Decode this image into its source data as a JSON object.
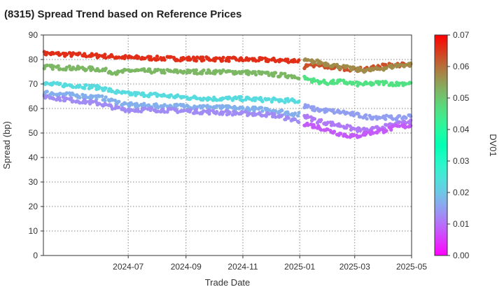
{
  "chart_data": {
    "type": "scatter",
    "title": "(8315)   Spread Trend based on Reference Prices",
    "xlabel": "Trade Date",
    "ylabel": "Spread (bp)",
    "xlim": [
      "2024-04-01",
      "2025-05-01"
    ],
    "ylim": [
      0,
      90
    ],
    "x_ticks": [
      "2024-07",
      "2024-09",
      "2024-11",
      "2025-01",
      "2025-03",
      "2025-05"
    ],
    "y_ticks": [
      0,
      10,
      20,
      30,
      40,
      50,
      60,
      70,
      80,
      90
    ],
    "grid": true,
    "colorbar": {
      "label": "DV01",
      "range": [
        0.0,
        0.07
      ],
      "ticks": [
        "0.00",
        "0.01",
        "0.02",
        "0.03",
        "0.04",
        "0.05",
        "0.06",
        "0.07"
      ],
      "colormap": "rainbow"
    },
    "series": [
      {
        "dv01": 0.066,
        "x": [
          "2024-04-01",
          "2024-05-01",
          "2024-06-01",
          "2024-07-01",
          "2024-08-01",
          "2024-09-01",
          "2024-10-01",
          "2024-11-01",
          "2024-12-01",
          "2024-12-31"
        ],
        "y": [
          82.5,
          82.0,
          81.5,
          80.8,
          80.5,
          80.3,
          80.2,
          80.0,
          79.8,
          79.5
        ]
      },
      {
        "dv01": 0.052,
        "x": [
          "2024-04-01",
          "2024-05-01",
          "2024-06-01",
          "2024-06-20",
          "2024-07-01",
          "2024-08-01",
          "2024-09-01",
          "2024-10-01",
          "2024-11-01",
          "2024-12-01",
          "2024-12-31"
        ],
        "y": [
          77.0,
          76.5,
          76.0,
          74.5,
          75.5,
          75.2,
          75.0,
          75.0,
          74.8,
          74.0,
          73.0
        ]
      },
      {
        "dv01": 0.023,
        "x": [
          "2024-04-01",
          "2024-05-01",
          "2024-06-01",
          "2024-06-20",
          "2024-07-01",
          "2024-08-01",
          "2024-09-01",
          "2024-10-01",
          "2024-11-01",
          "2024-12-01",
          "2024-12-31"
        ],
        "y": [
          70.0,
          69.5,
          68.5,
          66.5,
          66.0,
          65.5,
          64.5,
          64.0,
          64.0,
          63.5,
          63.0
        ]
      },
      {
        "dv01": 0.017,
        "x": [
          "2024-04-01",
          "2024-05-01",
          "2024-06-01",
          "2024-06-20",
          "2024-07-01",
          "2024-08-01",
          "2024-09-01",
          "2024-10-01",
          "2024-11-01",
          "2024-12-01",
          "2024-12-31"
        ],
        "y": [
          66.5,
          65.5,
          64.5,
          62.5,
          61.5,
          61.0,
          61.0,
          60.5,
          60.0,
          59.5,
          57.5
        ]
      },
      {
        "dv01": 0.013,
        "x": [
          "2024-04-01",
          "2024-05-01",
          "2024-06-01",
          "2024-06-20",
          "2024-07-01",
          "2024-08-01",
          "2024-09-01",
          "2024-10-01",
          "2024-11-01",
          "2024-12-01",
          "2024-12-31"
        ],
        "y": [
          65.0,
          63.5,
          62.0,
          60.0,
          59.5,
          59.5,
          59.0,
          58.5,
          58.0,
          57.5,
          55.0
        ]
      },
      {
        "dv01": 0.063,
        "x": [
          "2025-01-05",
          "2025-01-20",
          "2025-02-01",
          "2025-02-15",
          "2025-03-01",
          "2025-03-15",
          "2025-04-01",
          "2025-04-15",
          "2025-05-01"
        ],
        "y": [
          77.0,
          77.5,
          77.0,
          76.5,
          76.0,
          76.0,
          77.5,
          78.0,
          77.5
        ]
      },
      {
        "dv01": 0.057,
        "x": [
          "2025-01-05",
          "2025-01-20",
          "2025-02-01",
          "2025-02-15",
          "2025-03-01",
          "2025-03-15",
          "2025-04-01",
          "2025-04-15",
          "2025-05-01"
        ],
        "y": [
          79.5,
          79.0,
          78.0,
          77.0,
          76.0,
          75.5,
          76.5,
          77.5,
          78.0
        ]
      },
      {
        "dv01": 0.046,
        "x": [
          "2025-01-05",
          "2025-01-20",
          "2025-02-01",
          "2025-02-15",
          "2025-03-01",
          "2025-03-15",
          "2025-04-01",
          "2025-04-15",
          "2025-05-01"
        ],
        "y": [
          72.5,
          71.0,
          70.5,
          71.0,
          70.0,
          70.0,
          70.5,
          70.0,
          70.5
        ]
      },
      {
        "dv01": 0.015,
        "x": [
          "2025-01-05",
          "2025-01-20",
          "2025-02-01",
          "2025-02-15",
          "2025-03-01",
          "2025-03-15",
          "2025-04-01",
          "2025-04-15",
          "2025-05-01"
        ],
        "y": [
          61.0,
          59.5,
          59.0,
          58.5,
          57.5,
          56.5,
          56.5,
          56.0,
          57.0
        ]
      },
      {
        "dv01": 0.011,
        "x": [
          "2025-01-05",
          "2025-01-20",
          "2025-02-01",
          "2025-02-15",
          "2025-03-01",
          "2025-03-15",
          "2025-04-01",
          "2025-04-15",
          "2025-05-01"
        ],
        "y": [
          57.0,
          55.0,
          54.0,
          53.0,
          51.5,
          51.0,
          52.5,
          53.5,
          54.5
        ]
      },
      {
        "dv01": 0.008,
        "x": [
          "2025-01-05",
          "2025-01-20",
          "2025-02-01",
          "2025-02-15",
          "2025-03-01",
          "2025-03-15",
          "2025-04-01",
          "2025-04-15",
          "2025-05-01"
        ],
        "y": [
          54.0,
          52.5,
          51.0,
          49.5,
          48.5,
          50.0,
          51.0,
          52.5,
          53.0
        ]
      }
    ]
  }
}
